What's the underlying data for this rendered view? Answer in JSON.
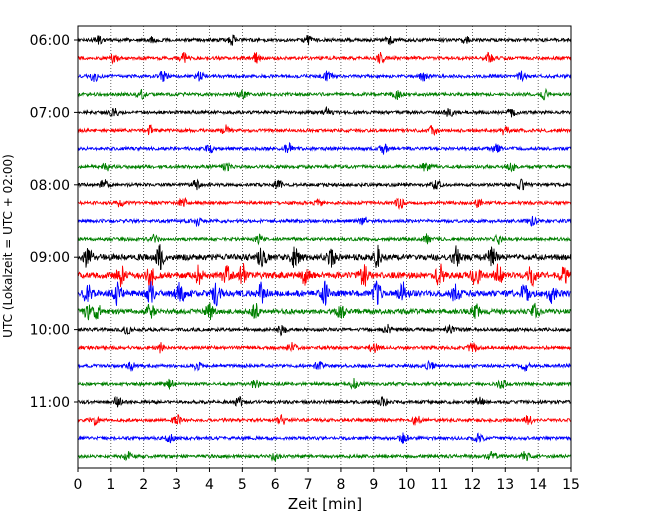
{
  "chart_data": {
    "type": "line",
    "chart_kind": "seismogram helicorder",
    "xlabel": "Zeit  [min]",
    "ylabel": "UTC (Lokalzeit = UTC + 02:00)",
    "x_ticks": [
      "0",
      "1",
      "2",
      "3",
      "4",
      "5",
      "6",
      "7",
      "8",
      "9",
      "10",
      "11",
      "12",
      "13",
      "14",
      "15"
    ],
    "xlim": [
      0,
      15
    ],
    "y_ticks": [
      "06:00",
      "07:00",
      "08:00",
      "09:00",
      "10:00",
      "11:00"
    ],
    "start_time": "06:00",
    "minutes_per_trace": 15,
    "grid": "vertical dotted lines at each minute",
    "colors": [
      "#000000",
      "#ff0000",
      "#0000ff",
      "#008000"
    ],
    "trace_color_cycle": [
      "black",
      "red",
      "blue",
      "green"
    ],
    "traces": [
      {
        "start": "06:00",
        "amplitude": "low",
        "events_min": [
          0.6,
          2.3,
          4.7,
          7.0,
          9.5,
          11.8
        ]
      },
      {
        "start": "06:15",
        "amplitude": "low",
        "events_min": [
          1.1,
          3.2,
          5.4,
          9.2,
          12.5
        ]
      },
      {
        "start": "06:30",
        "amplitude": "low",
        "events_min": [
          0.5,
          2.6,
          3.7,
          7.6,
          10.5,
          13.5
        ]
      },
      {
        "start": "06:45",
        "amplitude": "low",
        "events_min": [
          1.9,
          5.0,
          9.7,
          14.2
        ]
      },
      {
        "start": "07:00",
        "amplitude": "low",
        "events_min": [
          1.1,
          7.6,
          11.3,
          13.2
        ]
      },
      {
        "start": "07:15",
        "amplitude": "low",
        "events_min": [
          2.2,
          4.5,
          10.8,
          13.0
        ]
      },
      {
        "start": "07:30",
        "amplitude": "low",
        "events_min": [
          4.0,
          6.4,
          9.3,
          12.7
        ]
      },
      {
        "start": "07:45",
        "amplitude": "low",
        "events_min": [
          0.9,
          4.5,
          10.6,
          13.2
        ]
      },
      {
        "start": "08:00",
        "amplitude": "low",
        "events_min": [
          0.8,
          3.6,
          6.1,
          10.9,
          13.5
        ]
      },
      {
        "start": "08:15",
        "amplitude": "low",
        "events_min": [
          1.3,
          3.2,
          7.3,
          9.8,
          12.2
        ]
      },
      {
        "start": "08:30",
        "amplitude": "low",
        "events_min": [
          3.6,
          8.7,
          13.8
        ]
      },
      {
        "start": "08:45",
        "amplitude": "low",
        "events_min": [
          2.3,
          5.5,
          10.6,
          12.8
        ]
      },
      {
        "start": "09:00",
        "amplitude": "high",
        "events_min": [
          0.3,
          2.5,
          5.6,
          6.6,
          7.7,
          9.1,
          11.5,
          12.6
        ]
      },
      {
        "start": "09:15",
        "amplitude": "high",
        "events_min": [
          1.3,
          2.2,
          3.7,
          4.5,
          5.0,
          6.9,
          8.7,
          11.0,
          12.1,
          12.8,
          13.8,
          14.8
        ]
      },
      {
        "start": "09:30",
        "amplitude": "high",
        "events_min": [
          0.3,
          1.2,
          2.2,
          3.1,
          4.2,
          5.6,
          7.5,
          9.1,
          9.9,
          11.5,
          13.6,
          14.4
        ]
      },
      {
        "start": "09:45",
        "amplitude": "medium",
        "events_min": [
          0.3,
          0.6,
          2.2,
          4.0,
          5.4,
          8.0,
          12.1,
          13.9
        ]
      },
      {
        "start": "10:00",
        "amplitude": "low",
        "events_min": [
          1.5,
          6.2,
          9.4,
          11.3
        ]
      },
      {
        "start": "10:15",
        "amplitude": "low",
        "events_min": [
          2.5,
          6.5,
          9.0,
          12.0
        ]
      },
      {
        "start": "10:30",
        "amplitude": "low",
        "events_min": [
          1.6,
          3.6,
          7.3,
          10.7,
          13.6
        ]
      },
      {
        "start": "10:45",
        "amplitude": "low",
        "events_min": [
          2.8,
          5.4,
          8.4,
          12.9
        ]
      },
      {
        "start": "11:00",
        "amplitude": "low",
        "events_min": [
          1.2,
          4.9,
          9.3,
          12.2
        ]
      },
      {
        "start": "11:15",
        "amplitude": "low",
        "events_min": [
          0.5,
          3.0,
          6.2,
          10.3,
          13.7
        ]
      },
      {
        "start": "11:30",
        "amplitude": "low",
        "events_min": [
          2.8,
          9.9,
          12.2
        ]
      },
      {
        "start": "11:45",
        "amplitude": "low",
        "events_min": [
          1.5,
          6.0,
          12.6,
          13.6
        ]
      }
    ]
  }
}
